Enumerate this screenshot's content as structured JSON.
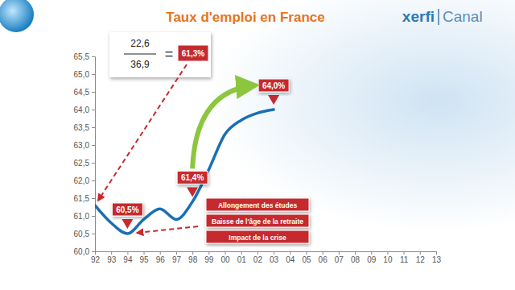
{
  "chart_data": {
    "type": "line",
    "title": "Taux d'emploi en France",
    "brand": [
      "xerfi",
      "Canal"
    ],
    "categories": [
      "92",
      "93",
      "94",
      "95",
      "96",
      "97",
      "98",
      "99",
      "00",
      "01",
      "02",
      "03",
      "04",
      "05",
      "06",
      "07",
      "08",
      "09",
      "10",
      "11",
      "12",
      "13"
    ],
    "values": [
      61.3,
      60.8,
      60.5,
      60.9,
      61.2,
      60.9,
      61.4,
      62.3,
      63.3,
      63.7,
      63.9,
      64.0,
      null,
      null,
      null,
      null,
      null,
      null,
      null,
      null,
      null,
      null
    ],
    "color": "#1a6fb4",
    "line_style": "smooth",
    "ylim": [
      60,
      65.5
    ],
    "yticks": [
      {
        "value": 60,
        "label": "60,0"
      },
      {
        "value": 60.5,
        "label": "60,5"
      },
      {
        "value": 61,
        "label": "61,0"
      },
      {
        "value": 61.5,
        "label": "61,5"
      },
      {
        "value": 62,
        "label": "62,0"
      },
      {
        "value": 62.5,
        "label": "62,5"
      },
      {
        "value": 63,
        "label": "63,0"
      },
      {
        "value": 63.5,
        "label": "63,5"
      },
      {
        "value": 64,
        "label": "64,0"
      },
      {
        "value": 64.5,
        "label": "64,5"
      },
      {
        "value": 65,
        "label": "65,0"
      },
      {
        "value": 65.5,
        "label": "65,5"
      }
    ],
    "grid": false,
    "annotations": {
      "fraction": {
        "numerator": "22,6",
        "denominator": "36,9",
        "equals": "=",
        "result": "61,3%"
      },
      "points": [
        {
          "x": "94",
          "text": "60,5%"
        },
        {
          "x": "98",
          "text": "61,4%"
        },
        {
          "x": "03",
          "text": "64,0%"
        }
      ],
      "causes": [
        "Allongement des études",
        "Baisse de l'âge de la retraite",
        "Impact de la crise"
      ]
    }
  }
}
